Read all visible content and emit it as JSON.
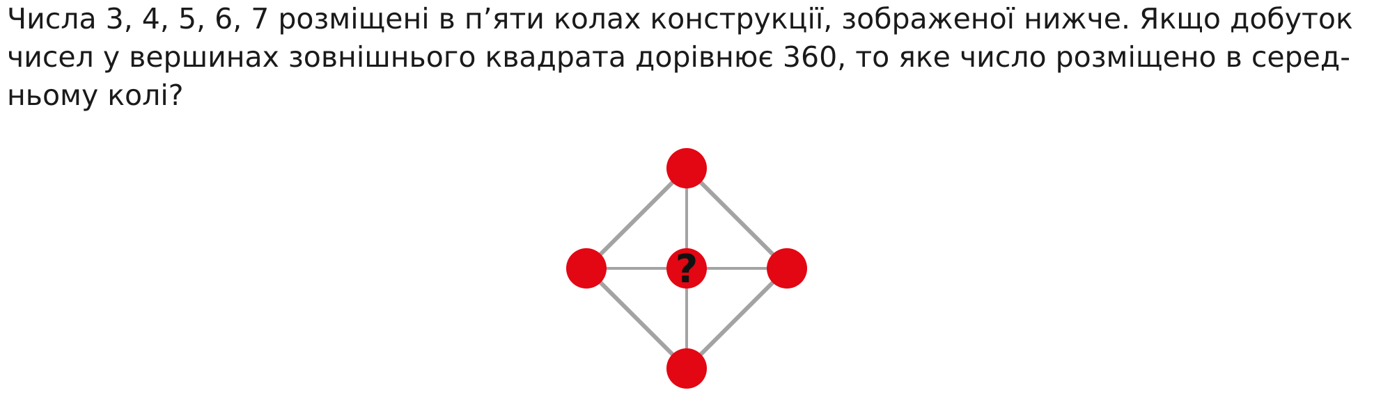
{
  "problem": {
    "lines": [
      "Числа 3, 4, 5, 6, 7 розміщені в п’яти колах конструкції, зображеної нижче. Якщо добуток",
      "чисел у вершинах зовнішнього квадрата дорівнює 360, то яке число розміщено в серед-",
      "ньому колі?"
    ]
  },
  "figure": {
    "center_label": "?",
    "colors": {
      "node_fill": "#e30613",
      "edge_stroke": "#a3a3a3",
      "label_color": "#111111"
    }
  }
}
